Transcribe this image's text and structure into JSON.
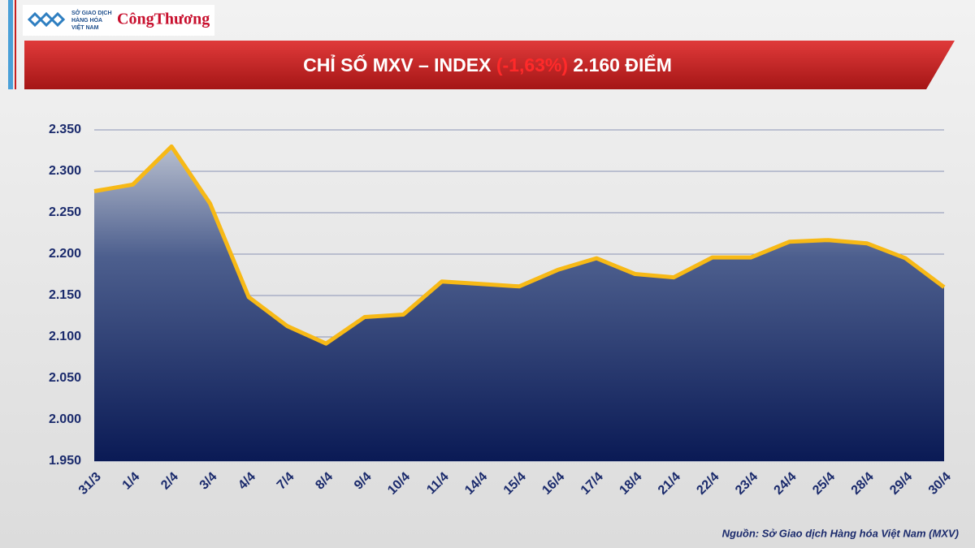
{
  "header": {
    "logo_lines": [
      "SỞ GIAO DỊCH",
      "HÀNG HÓA",
      "VIỆT NAM"
    ],
    "brand": "CôngThương"
  },
  "chart_data": {
    "type": "area",
    "title": "CHỈ SỐ MXV – INDEX",
    "title_change": "(-1,63%)",
    "title_value": "2.160 ĐIỂM",
    "categories": [
      "31/3",
      "1/4",
      "2/4",
      "3/4",
      "4/4",
      "7/4",
      "8/4",
      "9/4",
      "10/4",
      "11/4",
      "14/4",
      "15/4",
      "16/4",
      "17/4",
      "18/4",
      "21/4",
      "22/4",
      "23/4",
      "24/4",
      "25/4",
      "28/4",
      "29/4",
      "30/4"
    ],
    "values": [
      2276,
      2284,
      2330,
      2261,
      2148,
      2113,
      2092,
      2124,
      2127,
      2167,
      2164,
      2161,
      2181,
      2195,
      2176,
      2172,
      2196,
      2196,
      2215,
      2217,
      2213,
      2195,
      2160
    ],
    "color": "#f7b916",
    "ylim": [
      1950,
      2350
    ],
    "yticks": [
      {
        "value": 1950,
        "label": "1.950"
      },
      {
        "value": 2000,
        "label": "2.000"
      },
      {
        "value": 2050,
        "label": "2.050"
      },
      {
        "value": 2100,
        "label": "2.100"
      },
      {
        "value": 2150,
        "label": "2.150"
      },
      {
        "value": 2200,
        "label": "2.200"
      },
      {
        "value": 2250,
        "label": "2.250"
      },
      {
        "value": 2300,
        "label": "2.300"
      },
      {
        "value": 2350,
        "label": "2.350"
      }
    ],
    "grid": true,
    "source": "Nguồn: Sở Giao dịch Hàng hóa Việt Nam (MXV)"
  }
}
